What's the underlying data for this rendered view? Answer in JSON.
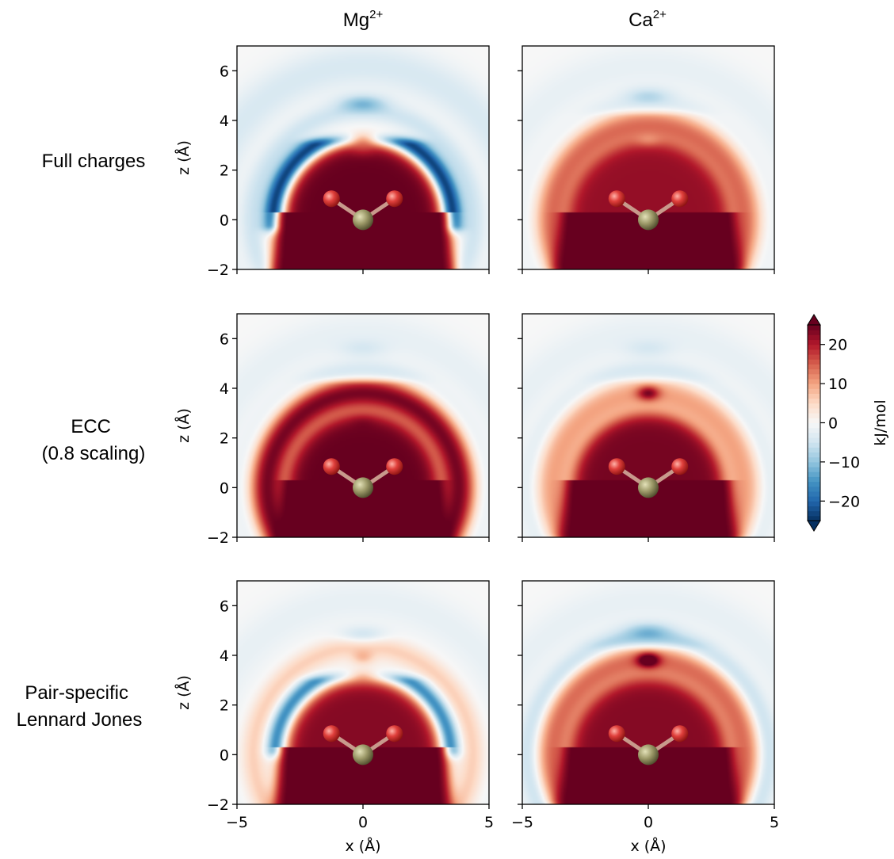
{
  "chart_data": {
    "type": "heatmap",
    "columns": [
      {
        "ion": "Mg",
        "charge": "2+"
      },
      {
        "ion": "Ca",
        "charge": "2+"
      }
    ],
    "rows": [
      {
        "lines": [
          "Full charges"
        ]
      },
      {
        "lines": [
          "ECC",
          "(0.8 scaling)"
        ]
      },
      {
        "lines": [
          "Pair-specific",
          "Lennard Jones"
        ]
      }
    ],
    "xlabel": "x (Å)",
    "ylabel": "z (Å)",
    "xlim": [
      -5,
      5
    ],
    "ylim": [
      -2,
      7
    ],
    "xticks": [
      -5,
      0,
      5
    ],
    "xtick_labels": [
      "−5",
      "0",
      "5"
    ],
    "yticks": [
      -2,
      0,
      2,
      4,
      6
    ],
    "ytick_labels": [
      "−2",
      "0",
      "2",
      "4",
      "6"
    ],
    "colorbar": {
      "label": "kJ/mol",
      "range": [
        -25,
        25
      ],
      "ticks": [
        -20,
        -10,
        0,
        10,
        20
      ],
      "tick_labels": [
        "−20",
        "−10",
        "0",
        "10",
        "20"
      ],
      "extend": "both",
      "colormap": "RdBu_r",
      "colors": [
        "#053061",
        "#2166ac",
        "#4393c3",
        "#92c5de",
        "#d1e5f0",
        "#f7f7f7",
        "#fddbc7",
        "#f4a582",
        "#d6604d",
        "#b2182b",
        "#67001f"
      ]
    },
    "molecule": {
      "central_atom": {
        "x": 0,
        "z": 0,
        "color": "#9c9968"
      },
      "oxygens": [
        {
          "x": -1.25,
          "z": 0.85
        },
        {
          "x": 1.25,
          "z": 0.85
        }
      ],
      "oxygen_color": "#e0403c",
      "bond_color": "#c89a8c"
    },
    "panels": [
      {
        "row": 0,
        "col": 0,
        "inner_level": 25,
        "inner_radius": 3.1,
        "shell_level": -27,
        "shell_radius": 3.5,
        "shell_width": 0.45,
        "shell_extent": [
          -0.2,
          3.0
        ],
        "gap_halfwidth": 0.5,
        "gap_level": 5,
        "cap_level": -27,
        "cap_z": 2.6,
        "mid_shell_level": -5,
        "outer_level": -4,
        "top_blob_level": -8,
        "top_blob_z": 4.7
      },
      {
        "row": 0,
        "col": 1,
        "inner_level": 22,
        "inner_radius": 3.2,
        "shell_level": 14,
        "shell_radius": 3.8,
        "shell_width": 0.8,
        "shell_extent": [
          -1.8,
          4.1
        ],
        "gap_halfwidth": 0,
        "gap_level": 14,
        "cap_level": -8,
        "cap_z": 3.05,
        "mid_shell_level": -3,
        "outer_level": -2,
        "top_blob_level": -5,
        "top_blob_z": 5.0
      },
      {
        "row": 1,
        "col": 0,
        "inner_level": 25,
        "inner_radius": 3.0,
        "shell_level": 24,
        "shell_radius": 3.8,
        "shell_width": 0.75,
        "shell_extent": [
          -2.0,
          4.1
        ],
        "gap_halfwidth": 0.6,
        "gap_level": 24,
        "cap_level": 12,
        "cap_z": 2.5,
        "mid_shell_level": -4,
        "outer_level": -2,
        "top_blob_level": -3,
        "top_blob_z": 5.6
      },
      {
        "row": 1,
        "col": 1,
        "inner_level": 24,
        "inner_radius": 3.0,
        "shell_level": 10,
        "shell_radius": 3.8,
        "shell_width": 0.8,
        "shell_extent": [
          -1.8,
          4.1
        ],
        "gap_halfwidth": 0,
        "gap_level": 10,
        "cap_level": 14,
        "cap_z": 3.8,
        "mid_shell_level": -4,
        "outer_level": -2,
        "top_blob_level": -3,
        "top_blob_z": 5.6
      },
      {
        "row": 2,
        "col": 0,
        "inner_level": 23,
        "inner_radius": 3.0,
        "shell_level": -18,
        "shell_radius": 3.45,
        "shell_width": 0.4,
        "shell_extent": [
          0.2,
          2.9
        ],
        "gap_halfwidth": 0.5,
        "gap_level": 5,
        "cap_level": 6,
        "cap_z": 3.9,
        "mid_shell_level": 6,
        "outer_level": -2,
        "top_blob_level": -6,
        "top_blob_z": 4.8
      },
      {
        "row": 2,
        "col": 1,
        "inner_level": 23,
        "inner_radius": 3.1,
        "shell_level": 14,
        "shell_radius": 3.8,
        "shell_width": 0.8,
        "shell_extent": [
          -1.8,
          4.1
        ],
        "gap_halfwidth": 0,
        "gap_level": 14,
        "cap_level": 18,
        "cap_z": 3.8,
        "mid_shell_level": -8,
        "outer_level": -2,
        "top_blob_level": -6,
        "top_blob_z": 5.0
      }
    ]
  }
}
